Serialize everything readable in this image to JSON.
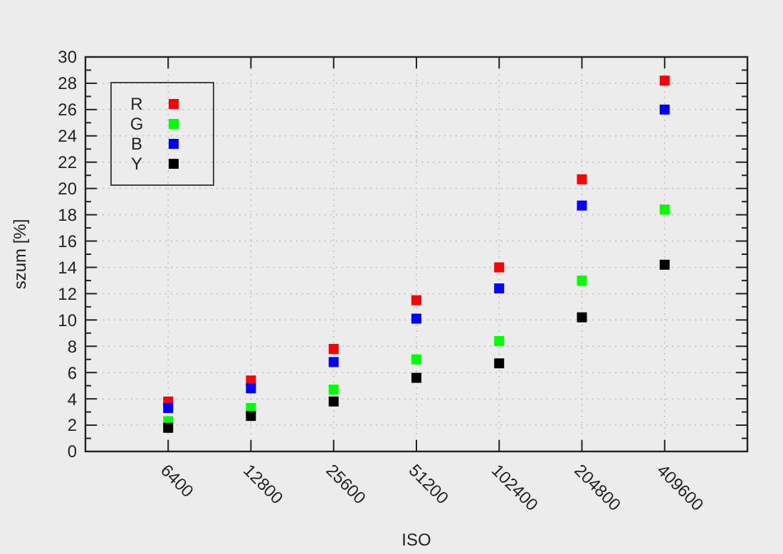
{
  "chart_data": {
    "type": "scatter",
    "xlabel": "ISO",
    "ylabel": "szum [%]",
    "categories": [
      "6400",
      "12800",
      "25600",
      "51200",
      "102400",
      "204800",
      "409600"
    ],
    "series": [
      {
        "name": "R",
        "color": "#ff0000",
        "values": [
          3.8,
          5.4,
          7.8,
          11.5,
          14.0,
          20.7,
          28.2
        ]
      },
      {
        "name": "G",
        "color": "#00ff00",
        "values": [
          2.3,
          3.3,
          4.7,
          7.0,
          8.4,
          13.0,
          18.4
        ]
      },
      {
        "name": "B",
        "color": "#0000ff",
        "values": [
          3.3,
          4.8,
          6.8,
          10.1,
          12.4,
          18.7,
          26.0
        ]
      },
      {
        "name": "Y",
        "color": "#000000",
        "values": [
          1.8,
          2.7,
          3.8,
          5.6,
          6.7,
          10.2,
          14.2
        ]
      }
    ],
    "ylim": [
      0,
      30
    ],
    "yticks": [
      0,
      {
        "value": 1,
        "label": null
      },
      2,
      {
        "value": 3,
        "label": null
      },
      4,
      {
        "value": 5,
        "label": null
      },
      6,
      {
        "value": 7,
        "label": null
      },
      8,
      {
        "value": 9,
        "label": null
      },
      10,
      {
        "value": 11,
        "label": null
      },
      12,
      {
        "value": 13,
        "label": null
      },
      14,
      {
        "value": 15,
        "label": null
      },
      16,
      {
        "value": 17,
        "label": null
      },
      18,
      {
        "value": 19,
        "label": null
      },
      20,
      {
        "value": 21,
        "label": null
      },
      22,
      {
        "value": 23,
        "label": null
      },
      24,
      {
        "value": 25,
        "label": null
      },
      26,
      {
        "value": 27,
        "label": null
      },
      28,
      {
        "value": 29,
        "label": null
      },
      30
    ],
    "grid": true,
    "legend": "top left",
    "marker": "square"
  }
}
